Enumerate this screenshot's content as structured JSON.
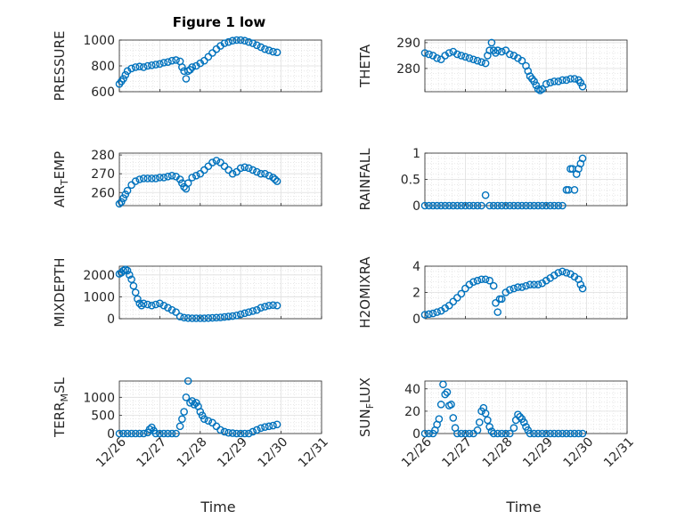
{
  "figure": {
    "title": "Figure 1 low",
    "xlabel": "Time"
  },
  "x_tick_labels": [
    "12/26",
    "12/27",
    "12/28",
    "12/29",
    "12/30",
    "12/31"
  ],
  "marker_color": "#0072bd",
  "chart_data": [
    {
      "type": "scatter",
      "ylabel": "PRESSURE",
      "xlim": [
        "12/26",
        "12/31"
      ],
      "ylim": [
        600,
        1000
      ],
      "yticks": [
        600,
        800,
        1000
      ],
      "x": [
        0.0,
        0.05,
        0.1,
        0.15,
        0.2,
        0.3,
        0.4,
        0.5,
        0.6,
        0.7,
        0.8,
        0.9,
        1.0,
        1.1,
        1.2,
        1.3,
        1.4,
        1.5,
        1.55,
        1.6,
        1.65,
        1.7,
        1.75,
        1.8,
        1.9,
        2.0,
        2.1,
        2.2,
        2.3,
        2.4,
        2.5,
        2.6,
        2.7,
        2.8,
        2.9,
        3.0,
        3.1,
        3.2,
        3.3,
        3.4,
        3.5,
        3.6,
        3.7,
        3.8,
        3.9
      ],
      "y": [
        660,
        680,
        700,
        730,
        760,
        780,
        790,
        795,
        790,
        800,
        805,
        810,
        815,
        825,
        830,
        840,
        845,
        835,
        790,
        760,
        700,
        760,
        770,
        790,
        800,
        820,
        840,
        870,
        900,
        930,
        955,
        975,
        985,
        995,
        1000,
        1000,
        995,
        985,
        975,
        960,
        945,
        930,
        920,
        910,
        905
      ]
    },
    {
      "type": "scatter",
      "ylabel": "THETA",
      "xlim": [
        "12/26",
        "12/31"
      ],
      "ylim": [
        271,
        291
      ],
      "yticks": [
        280,
        290
      ],
      "x": [
        0.0,
        0.1,
        0.2,
        0.3,
        0.4,
        0.5,
        0.6,
        0.7,
        0.8,
        0.9,
        1.0,
        1.1,
        1.2,
        1.3,
        1.4,
        1.5,
        1.55,
        1.6,
        1.65,
        1.7,
        1.75,
        1.8,
        1.9,
        2.0,
        2.1,
        2.2,
        2.3,
        2.4,
        2.5,
        2.55,
        2.6,
        2.65,
        2.7,
        2.75,
        2.8,
        2.85,
        2.9,
        3.0,
        3.1,
        3.2,
        3.3,
        3.4,
        3.5,
        3.6,
        3.7,
        3.8,
        3.85,
        3.9
      ],
      "y": [
        286,
        285.5,
        285,
        284,
        283.5,
        285,
        286,
        286.5,
        285.5,
        285,
        284.5,
        284,
        283.5,
        283,
        282.5,
        282,
        285,
        287,
        290,
        287,
        286,
        287,
        286.5,
        287,
        285.5,
        285,
        284,
        283,
        281,
        279,
        277,
        276,
        275,
        273.5,
        272,
        271.5,
        272,
        274,
        274.5,
        275,
        275,
        275.5,
        275.5,
        276,
        276,
        275.5,
        274.5,
        273
      ]
    },
    {
      "type": "scatter",
      "ylabel": "AIR",
      "ylabel_sub": "T",
      "ylabel_rest": "EMP",
      "xlim": [
        "12/26",
        "12/31"
      ],
      "ylim": [
        253,
        281
      ],
      "yticks": [
        260,
        270,
        280
      ],
      "x": [
        0.0,
        0.05,
        0.1,
        0.15,
        0.2,
        0.3,
        0.4,
        0.5,
        0.6,
        0.7,
        0.8,
        0.9,
        1.0,
        1.1,
        1.2,
        1.3,
        1.4,
        1.5,
        1.55,
        1.6,
        1.65,
        1.7,
        1.8,
        1.9,
        2.0,
        2.1,
        2.2,
        2.3,
        2.4,
        2.5,
        2.6,
        2.7,
        2.8,
        2.9,
        3.0,
        3.1,
        3.2,
        3.3,
        3.4,
        3.5,
        3.6,
        3.7,
        3.8,
        3.85,
        3.9
      ],
      "y": [
        254,
        255,
        257,
        259,
        261,
        264,
        266,
        267,
        267.5,
        267.5,
        267.5,
        267.5,
        268,
        268,
        268.5,
        269,
        268.5,
        267,
        265,
        263,
        262,
        265,
        268,
        269,
        270,
        272,
        274,
        276,
        277,
        276,
        274,
        272,
        270,
        271,
        273,
        273.5,
        273,
        272,
        271,
        270,
        270,
        269,
        268,
        267,
        266
      ]
    },
    {
      "type": "scatter",
      "ylabel": "RAINFALL",
      "xlim": [
        "12/26",
        "12/31"
      ],
      "ylim": [
        0,
        1
      ],
      "yticks": [
        0,
        0.5,
        1
      ],
      "x": [
        0.0,
        0.1,
        0.2,
        0.3,
        0.4,
        0.5,
        0.6,
        0.7,
        0.8,
        0.9,
        1.0,
        1.1,
        1.2,
        1.3,
        1.4,
        1.5,
        1.6,
        1.7,
        1.8,
        1.9,
        2.0,
        2.1,
        2.2,
        2.3,
        2.4,
        2.5,
        2.6,
        2.7,
        2.8,
        2.9,
        3.0,
        3.1,
        3.2,
        3.3,
        3.4,
        3.5,
        3.55,
        3.6,
        3.65,
        3.7,
        3.75,
        3.8,
        3.85,
        3.9
      ],
      "y": [
        0,
        0,
        0,
        0,
        0,
        0,
        0,
        0,
        0,
        0,
        0,
        0,
        0,
        0,
        0,
        0.2,
        0,
        0,
        0,
        0,
        0,
        0,
        0,
        0,
        0,
        0,
        0,
        0,
        0,
        0,
        0,
        0,
        0,
        0,
        0,
        0.3,
        0.3,
        0.7,
        0.7,
        0.3,
        0.6,
        0.7,
        0.8,
        0.9
      ]
    },
    {
      "type": "scatter",
      "ylabel": "MIXDEPTH",
      "xlim": [
        "12/26",
        "12/31"
      ],
      "ylim": [
        0,
        2400
      ],
      "yticks": [
        0,
        1000,
        2000
      ],
      "x": [
        0.0,
        0.05,
        0.1,
        0.15,
        0.2,
        0.25,
        0.3,
        0.35,
        0.4,
        0.45,
        0.5,
        0.55,
        0.6,
        0.7,
        0.8,
        0.9,
        1.0,
        1.1,
        1.2,
        1.3,
        1.4,
        1.5,
        1.6,
        1.7,
        1.8,
        1.9,
        2.0,
        2.1,
        2.2,
        2.3,
        2.4,
        2.5,
        2.6,
        2.7,
        2.8,
        2.9,
        3.0,
        3.1,
        3.2,
        3.3,
        3.4,
        3.5,
        3.6,
        3.7,
        3.8,
        3.9
      ],
      "y": [
        2050,
        2100,
        2200,
        2250,
        2200,
        2000,
        1800,
        1500,
        1200,
        900,
        700,
        600,
        700,
        650,
        600,
        650,
        700,
        600,
        500,
        400,
        300,
        100,
        50,
        30,
        20,
        20,
        20,
        20,
        30,
        40,
        50,
        60,
        80,
        100,
        120,
        150,
        200,
        250,
        300,
        350,
        400,
        500,
        550,
        600,
        620,
        600
      ]
    },
    {
      "type": "scatter",
      "ylabel": "H2OMIXRA",
      "xlim": [
        "12/26",
        "12/31"
      ],
      "ylim": [
        0,
        4
      ],
      "yticks": [
        0,
        2,
        4
      ],
      "x": [
        0.0,
        0.1,
        0.2,
        0.3,
        0.4,
        0.5,
        0.6,
        0.7,
        0.8,
        0.9,
        1.0,
        1.1,
        1.2,
        1.3,
        1.4,
        1.5,
        1.6,
        1.7,
        1.75,
        1.8,
        1.85,
        1.9,
        2.0,
        2.1,
        2.2,
        2.3,
        2.4,
        2.5,
        2.6,
        2.7,
        2.8,
        2.9,
        3.0,
        3.1,
        3.2,
        3.3,
        3.4,
        3.5,
        3.6,
        3.7,
        3.8,
        3.85,
        3.9
      ],
      "y": [
        0.3,
        0.35,
        0.4,
        0.5,
        0.6,
        0.8,
        1.0,
        1.3,
        1.6,
        1.9,
        2.3,
        2.6,
        2.8,
        2.9,
        3.0,
        3.0,
        2.9,
        2.5,
        1.2,
        0.5,
        1.5,
        1.5,
        2.0,
        2.2,
        2.3,
        2.4,
        2.4,
        2.5,
        2.6,
        2.6,
        2.6,
        2.7,
        2.9,
        3.1,
        3.3,
        3.5,
        3.6,
        3.5,
        3.4,
        3.2,
        3.0,
        2.6,
        2.3
      ]
    },
    {
      "type": "scatter",
      "ylabel": "TERR",
      "ylabel_sub": "M",
      "ylabel_rest": "SL",
      "xlim": [
        "12/26",
        "12/31"
      ],
      "ylim": [
        0,
        1450
      ],
      "yticks": [
        0,
        500,
        1000
      ],
      "x": [
        0.0,
        0.1,
        0.2,
        0.3,
        0.4,
        0.5,
        0.6,
        0.7,
        0.75,
        0.8,
        0.85,
        0.9,
        1.0,
        1.1,
        1.2,
        1.3,
        1.4,
        1.5,
        1.55,
        1.6,
        1.65,
        1.7,
        1.75,
        1.8,
        1.85,
        1.9,
        1.95,
        2.0,
        2.05,
        2.1,
        2.2,
        2.3,
        2.4,
        2.5,
        2.6,
        2.7,
        2.8,
        2.9,
        3.0,
        3.1,
        3.2,
        3.3,
        3.4,
        3.5,
        3.6,
        3.7,
        3.8,
        3.9
      ],
      "y": [
        0,
        0,
        0,
        0,
        0,
        0,
        0,
        30,
        120,
        170,
        80,
        0,
        0,
        0,
        0,
        0,
        0,
        200,
        400,
        600,
        1000,
        1450,
        850,
        900,
        800,
        850,
        750,
        600,
        500,
        400,
        350,
        300,
        200,
        100,
        50,
        20,
        10,
        0,
        0,
        0,
        0,
        50,
        100,
        150,
        180,
        200,
        220,
        250
      ]
    },
    {
      "type": "scatter",
      "ylabel": "SUN",
      "ylabel_sub": "F",
      "ylabel_rest": "LUX",
      "xlim": [
        "12/26",
        "12/31"
      ],
      "ylim": [
        0,
        47
      ],
      "yticks": [
        0,
        20,
        40
      ],
      "x": [
        0.0,
        0.1,
        0.2,
        0.25,
        0.3,
        0.35,
        0.4,
        0.45,
        0.5,
        0.55,
        0.6,
        0.65,
        0.7,
        0.75,
        0.8,
        0.9,
        1.0,
        1.1,
        1.2,
        1.3,
        1.35,
        1.4,
        1.45,
        1.5,
        1.55,
        1.6,
        1.65,
        1.7,
        1.8,
        1.9,
        2.0,
        2.1,
        2.2,
        2.25,
        2.3,
        2.35,
        2.4,
        2.45,
        2.5,
        2.55,
        2.6,
        2.7,
        2.8,
        2.9,
        3.0,
        3.1,
        3.2,
        3.3,
        3.4,
        3.5,
        3.6,
        3.7,
        3.8,
        3.9
      ],
      "y": [
        0,
        0,
        0,
        3,
        8,
        13,
        26,
        44,
        35,
        37,
        25,
        26,
        14,
        5,
        0,
        0,
        0,
        0,
        0,
        3,
        10,
        20,
        23,
        18,
        12,
        6,
        2,
        0,
        0,
        0,
        0,
        0,
        5,
        12,
        17,
        15,
        13,
        10,
        6,
        3,
        0,
        0,
        0,
        0,
        0,
        0,
        0,
        0,
        0,
        0,
        0,
        0,
        0,
        0
      ]
    }
  ]
}
